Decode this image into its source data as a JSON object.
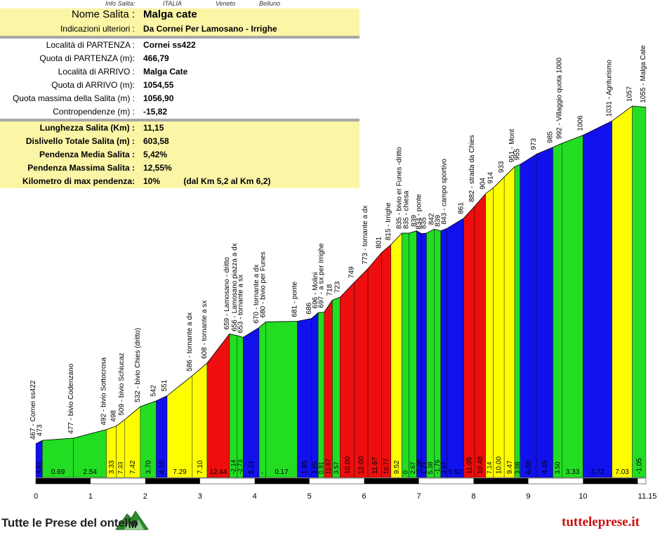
{
  "info_header": {
    "label": "Info Salita:",
    "country": "ITALIA",
    "region": "Veneto",
    "province": "Belluno"
  },
  "info_rows": [
    {
      "label": "Nome Salita :",
      "value": "Malga cate",
      "style": "title"
    },
    {
      "label": "Indicazioni ulteriori :",
      "value": "Da Cornei Per Lamosano - Irrighe",
      "style": "yellow"
    },
    {
      "label": "Località di PARTENZA :",
      "value": "Cornei ss422",
      "style": "white"
    },
    {
      "label": "Quota di PARTENZA (m):",
      "value": "466,79",
      "style": "white"
    },
    {
      "label": "Località di ARRIVO :",
      "value": "Malga Cate",
      "style": "white"
    },
    {
      "label": "Quota di ARRIVO (m):",
      "value": "1054,55",
      "style": "white"
    },
    {
      "label": "Quota massima della Salita (m) :",
      "value": "1056,90",
      "style": "white"
    },
    {
      "label": "Contropendenze (m) :",
      "value": "-15,82",
      "style": "white"
    },
    {
      "label": "Lunghezza Salita (Km) :",
      "value": "11,15",
      "style": "summary"
    },
    {
      "label": "Dislivello Totale Salita (m) :",
      "value": "603,58",
      "style": "summary"
    },
    {
      "label": "Pendenza Media Salita :",
      "value": "5,42%",
      "style": "summary"
    },
    {
      "label": "Pendenza Massima Salita :",
      "value": "12,55%",
      "style": "summary"
    },
    {
      "label": "Kilometro di max pendenza:",
      "value": "10%          (dal Km 5,2 al Km 6,2)",
      "style": "summary"
    }
  ],
  "footer": {
    "left": "Tutte le Prese del   ontello",
    "right": "tuttelepresе.it"
  },
  "colors": {
    "green": "#22dd22",
    "blue": "#1111ee",
    "red": "#ee0e0e",
    "yellow": "#fefe00",
    "summary_bg": "#fbf5a6",
    "separator": "#a8a8a8"
  },
  "chart_data": {
    "type": "area",
    "title": "",
    "xlabel": "",
    "ylabel": "",
    "xlim": [
      0,
      11.15
    ],
    "ylim": [
      420,
      1060
    ],
    "x_ticks": [
      "0",
      "1",
      "2",
      "3",
      "4",
      "5",
      "6",
      "7",
      "8",
      "9",
      "10",
      "11.15"
    ],
    "profile": [
      {
        "x": 0.0,
        "y": 467,
        "label": "467 - Cornei ss422"
      },
      {
        "x": 0.12,
        "y": 473,
        "label": "473"
      },
      {
        "x": 0.69,
        "y": 477,
        "label": "477 - bivio Codenzano"
      },
      {
        "x": 1.29,
        "y": 492,
        "label": "492 - bivio Sottocrosa"
      },
      {
        "x": 1.47,
        "y": 498,
        "label": "498"
      },
      {
        "x": 1.62,
        "y": 509,
        "label": "509 - bivio Schiucaz"
      },
      {
        "x": 1.91,
        "y": 532,
        "label": "532 - bivio Chies (dritto)"
      },
      {
        "x": 2.2,
        "y": 542,
        "label": "542"
      },
      {
        "x": 2.4,
        "y": 551,
        "label": "551"
      },
      {
        "x": 2.86,
        "y": 586,
        "label": "586 - tornante a dx"
      },
      {
        "x": 3.13,
        "y": 608,
        "label": "608 - tornante a sx"
      },
      {
        "x": 3.54,
        "y": 659,
        "label": "659 - Lamosano - dritto"
      },
      {
        "x": 3.68,
        "y": 656,
        "label": "656 - Lamosano piazza a dx"
      },
      {
        "x": 3.79,
        "y": 653,
        "label": "653 - tornante a sx"
      },
      {
        "x": 4.08,
        "y": 670,
        "label": "670 - tornante a dx"
      },
      {
        "x": 4.2,
        "y": 680,
        "label": "680 - bivio per Funes"
      },
      {
        "x": 4.78,
        "y": 681,
        "label": "681 - ponte"
      },
      {
        "x": 5.04,
        "y": 686,
        "label": "686"
      },
      {
        "x": 5.16,
        "y": 696,
        "label": "696 - Molini"
      },
      {
        "x": 5.27,
        "y": 697,
        "label": "697 - a sx per Irrighe"
      },
      {
        "x": 5.42,
        "y": 718,
        "label": "718"
      },
      {
        "x": 5.56,
        "y": 723,
        "label": "723"
      },
      {
        "x": 5.82,
        "y": 749,
        "label": "749"
      },
      {
        "x": 6.07,
        "y": 773,
        "label": "773 - tornante a dx"
      },
      {
        "x": 6.32,
        "y": 801,
        "label": "801"
      },
      {
        "x": 6.49,
        "y": 815,
        "label": "815 - Irrighe"
      },
      {
        "x": 6.69,
        "y": 835,
        "label": "835 - bivio er Funes -dritto"
      },
      {
        "x": 6.82,
        "y": 835,
        "label": "835 - chiesa"
      },
      {
        "x": 6.96,
        "y": 839,
        "label": "839"
      },
      {
        "x": 7.05,
        "y": 834,
        "label": "834 - ponte"
      },
      {
        "x": 7.14,
        "y": 835,
        "label": "835"
      },
      {
        "x": 7.28,
        "y": 842,
        "label": "842"
      },
      {
        "x": 7.4,
        "y": 839,
        "label": "839"
      },
      {
        "x": 7.51,
        "y": 843,
        "label": "843 - campo sportivo"
      },
      {
        "x": 7.82,
        "y": 861,
        "label": "861"
      },
      {
        "x": 8.02,
        "y": 882,
        "label": "882 - strada da Chies"
      },
      {
        "x": 8.22,
        "y": 904,
        "label": "904"
      },
      {
        "x": 8.36,
        "y": 914,
        "label": "914"
      },
      {
        "x": 8.56,
        "y": 933,
        "label": "933"
      },
      {
        "x": 8.75,
        "y": 951,
        "label": "951 - Mont"
      },
      {
        "x": 8.85,
        "y": 955,
        "label": "955"
      },
      {
        "x": 9.15,
        "y": 973,
        "label": "973"
      },
      {
        "x": 9.45,
        "y": 985,
        "label": "985"
      },
      {
        "x": 9.62,
        "y": 992,
        "label": "992 - Villaggio quota 1000"
      },
      {
        "x": 10.0,
        "y": 1006,
        "label": "1006"
      },
      {
        "x": 10.53,
        "y": 1031,
        "label": "1031 - Agriturismo"
      },
      {
        "x": 10.9,
        "y": 1057,
        "label": "1057"
      },
      {
        "x": 11.15,
        "y": 1055,
        "label": "1055 - Malga Cate"
      }
    ],
    "segments": [
      {
        "color": "blue",
        "grade": "4.92"
      },
      {
        "color": "green",
        "grade": "0.69"
      },
      {
        "color": "green",
        "grade": "2.54"
      },
      {
        "color": "yellow",
        "grade": "3.33"
      },
      {
        "color": "yellow",
        "grade": "7.33"
      },
      {
        "color": "yellow",
        "grade": "7.42"
      },
      {
        "color": "green",
        "grade": "3.70"
      },
      {
        "color": "blue",
        "grade": "4.55"
      },
      {
        "color": "yellow",
        "grade": "7.29"
      },
      {
        "color": "yellow",
        "grade": "7.10"
      },
      {
        "color": "red",
        "grade": "12.44"
      },
      {
        "color": "green",
        "grade": "-2.14"
      },
      {
        "color": "green",
        "grade": "-2.73"
      },
      {
        "color": "blue",
        "grade": "5.21"
      },
      {
        "color": "green",
        "grade": "-"
      },
      {
        "color": "green",
        "grade": "0.17"
      },
      {
        "color": "blue",
        "grade": "1.85"
      },
      {
        "color": "blue",
        "grade": "3.85"
      },
      {
        "color": "green",
        "grade": "0.91"
      },
      {
        "color": "red",
        "grade": "11.67"
      },
      {
        "color": "green",
        "grade": "3.57"
      },
      {
        "color": "red",
        "grade": "10.00"
      },
      {
        "color": "red",
        "grade": "12.00"
      },
      {
        "color": "red",
        "grade": "11.67"
      },
      {
        "color": "red",
        "grade": "10.77"
      },
      {
        "color": "yellow",
        "grade": "9.52"
      },
      {
        "color": "green",
        "grade": "0"
      },
      {
        "color": "green",
        "grade": "2.67"
      },
      {
        "color": "blue",
        "grade": "-1.08"
      },
      {
        "color": "blue",
        "grade": "1.21"
      },
      {
        "color": "green",
        "grade": "5.38"
      },
      {
        "color": "green",
        "grade": "-1.76"
      },
      {
        "color": "blue",
        "grade": "3.67"
      },
      {
        "color": "blue",
        "grade": "5.92"
      },
      {
        "color": "red",
        "grade": "11.05"
      },
      {
        "color": "red",
        "grade": "10.48"
      },
      {
        "color": "yellow",
        "grade": "7.14"
      },
      {
        "color": "yellow",
        "grade": "10.00"
      },
      {
        "color": "yellow",
        "grade": "9.47"
      },
      {
        "color": "green",
        "grade": "3.08"
      },
      {
        "color": "blue",
        "grade": "6.00"
      },
      {
        "color": "blue",
        "grade": "4.45"
      },
      {
        "color": "green",
        "grade": "3.50"
      },
      {
        "color": "green",
        "grade": "3.33"
      },
      {
        "color": "blue",
        "grade": "4.72"
      },
      {
        "color": "yellow",
        "grade": "7.03"
      },
      {
        "color": "green",
        "grade": "-1.05"
      }
    ]
  }
}
